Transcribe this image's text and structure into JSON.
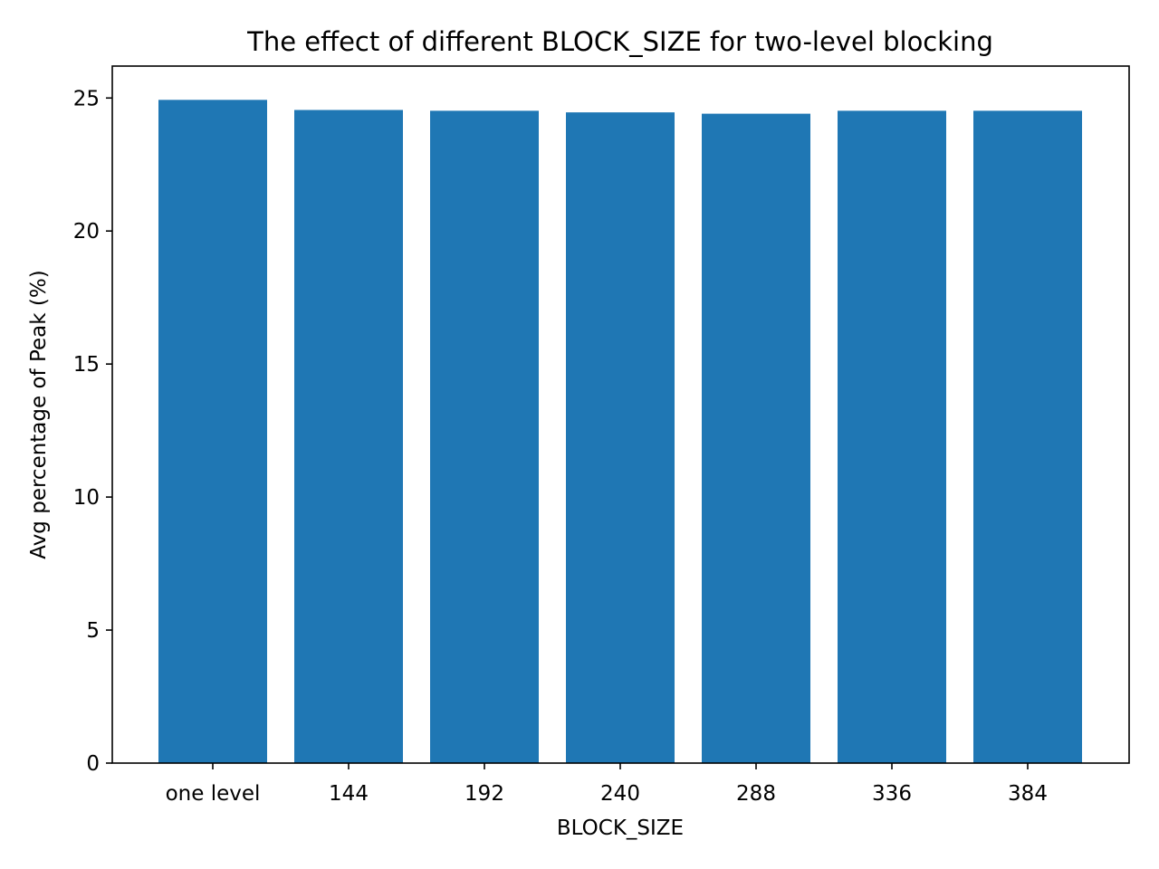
{
  "chart_data": {
    "type": "bar",
    "title": "The effect of different BLOCK_SIZE for two-level blocking",
    "xlabel": "BLOCK_SIZE",
    "ylabel": "Avg percentage of Peak (%)",
    "categories": [
      "one level",
      "144",
      "192",
      "240",
      "288",
      "336",
      "384"
    ],
    "values": [
      24.93,
      24.55,
      24.52,
      24.46,
      24.41,
      24.52,
      24.52
    ],
    "ylim": [
      0,
      26.2
    ],
    "yticks": [
      0,
      5,
      10,
      15,
      20,
      25
    ],
    "grid": false,
    "bar_color": "#1f77b4"
  }
}
